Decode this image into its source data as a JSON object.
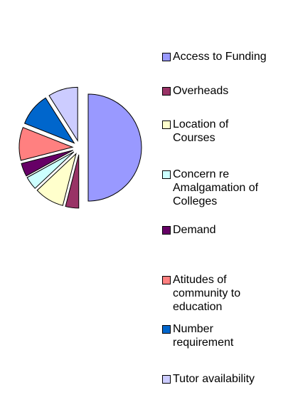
{
  "chart_data": {
    "type": "pie",
    "categories": [
      "Access to Funding",
      "Overheads",
      "Location of Courses",
      "Concern re Amalgamation of Colleges",
      "Demand",
      "Atitudes of community to education",
      "Number requirement",
      "Tutor availability"
    ],
    "values": [
      50,
      4,
      9,
      4,
      4,
      10,
      10,
      9
    ],
    "colors": [
      "#9999ff",
      "#993366",
      "#ffffcc",
      "#ccffff",
      "#660066",
      "#ff8080",
      "#0066cc",
      "#ccccff"
    ],
    "legend": "right"
  }
}
